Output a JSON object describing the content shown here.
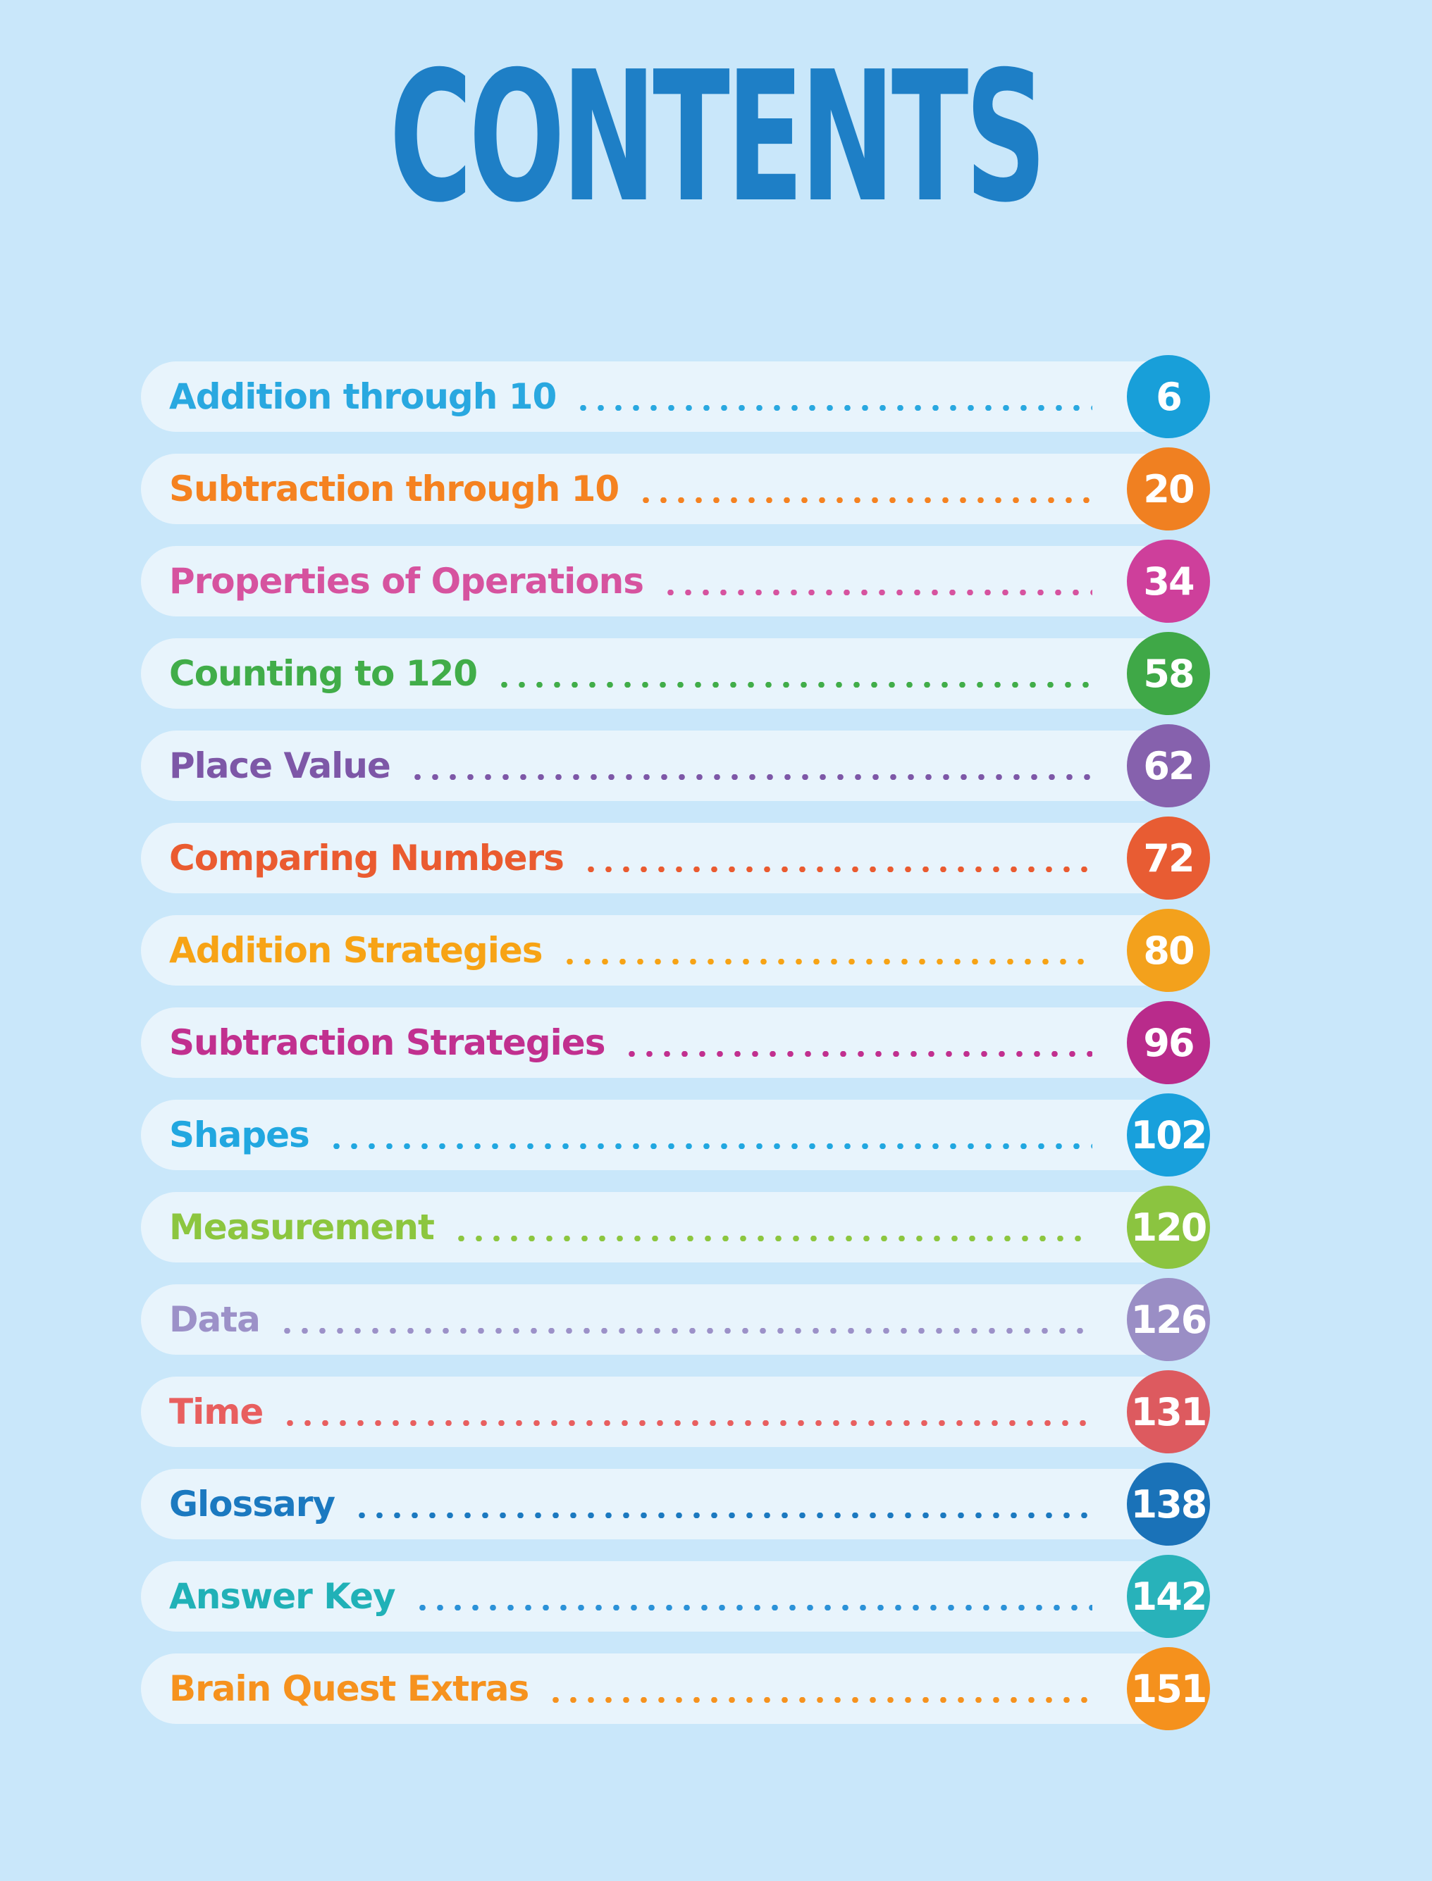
{
  "page": {
    "title": "CONTENTS",
    "background_color": "#c9e7fa",
    "row_background_color": "#e8f4fc",
    "title_color": "#1e7fc6",
    "page_number_text_color": "#ffffff"
  },
  "toc": {
    "entries": [
      {
        "label": "Addition through 10",
        "page": "6",
        "color": "#29a8e0",
        "circle_color": "#189fd9",
        "dot_color": "#29a8e0"
      },
      {
        "label": "Subtraction through 10",
        "page": "20",
        "color": "#f58220",
        "circle_color": "#f08021",
        "dot_color": "#f58220"
      },
      {
        "label": "Properties of Operations",
        "page": "34",
        "color": "#d6539f",
        "circle_color": "#ce3f9b",
        "dot_color": "#d6539f"
      },
      {
        "label": "Counting to 120",
        "page": "58",
        "color": "#41ad49",
        "circle_color": "#3fa847",
        "dot_color": "#41ad49"
      },
      {
        "label": "Place Value",
        "page": "62",
        "color": "#7d57a7",
        "circle_color": "#8661ad",
        "dot_color": "#7d57a7"
      },
      {
        "label": "Comparing Numbers",
        "page": "72",
        "color": "#ea5b30",
        "circle_color": "#e85c33",
        "dot_color": "#ea5b30"
      },
      {
        "label": "Addition Strategies",
        "page": "80",
        "color": "#f7a315",
        "circle_color": "#f3a11c",
        "dot_color": "#f7a315"
      },
      {
        "label": "Subtraction Strategies",
        "page": "96",
        "color": "#c1308f",
        "circle_color": "#b92b8b",
        "dot_color": "#c1308f"
      },
      {
        "label": "Shapes",
        "page": "102",
        "color": "#21a7e0",
        "circle_color": "#18a0dc",
        "dot_color": "#21a7e0"
      },
      {
        "label": "Measurement",
        "page": "120",
        "color": "#8cc63f",
        "circle_color": "#8bc440",
        "dot_color": "#8cc63f"
      },
      {
        "label": "Data",
        "page": "126",
        "color": "#9c91c8",
        "circle_color": "#9a8ec5",
        "dot_color": "#9c91c8"
      },
      {
        "label": "Time",
        "page": "131",
        "color": "#e85f5f",
        "circle_color": "#dd5a5f",
        "dot_color": "#e85f5f"
      },
      {
        "label": "Glossary",
        "page": "138",
        "color": "#1b79c0",
        "circle_color": "#1a72b8",
        "dot_color": "#1b79c0"
      },
      {
        "label": "Answer Key",
        "page": "142",
        "color": "#20b1b7",
        "circle_color": "#28b2ba",
        "dot_color": "#2b92d8"
      },
      {
        "label": "Brain Quest Extras",
        "page": "151",
        "color": "#f6921e",
        "circle_color": "#f5911d",
        "dot_color": "#f6921e"
      }
    ]
  }
}
